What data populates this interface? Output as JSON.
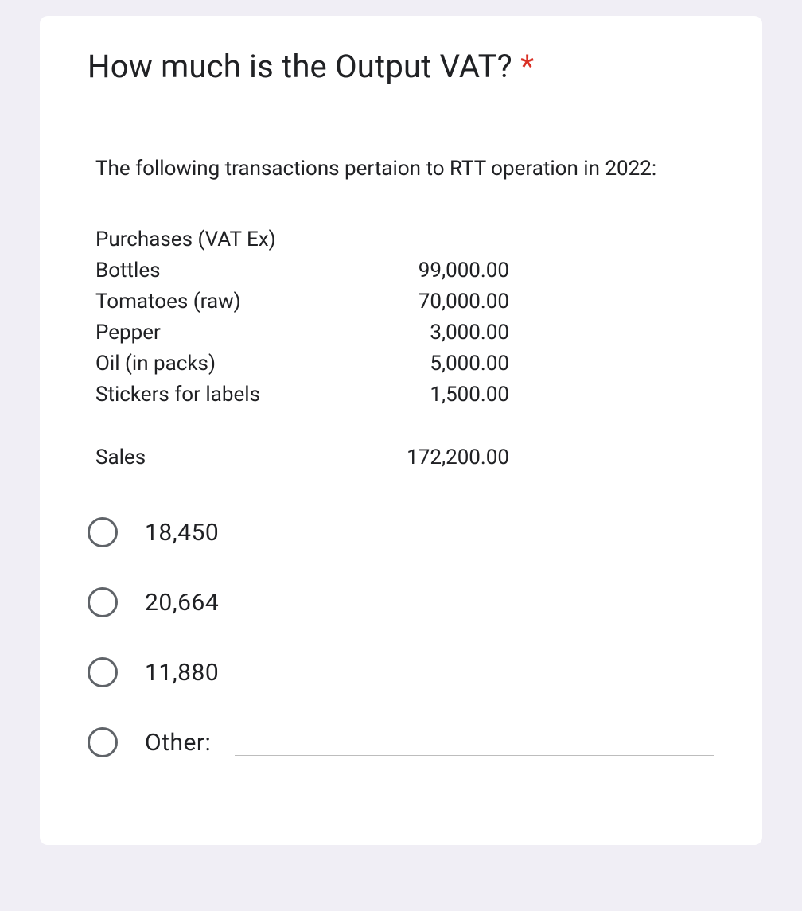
{
  "question": {
    "title": "How much is the Output VAT?",
    "required_marker": "*"
  },
  "intro": "The following transactions pertaion to RTT operation in 2022:",
  "table": {
    "section1_header": "Purchases (VAT Ex)",
    "rows1": [
      {
        "label": "Bottles",
        "value": "99,000.00"
      },
      {
        "label": "Tomatoes (raw)",
        "value": "70,000.00"
      },
      {
        "label": "Pepper",
        "value": "3,000.00"
      },
      {
        "label": "Oil (in packs)",
        "value": "5,000.00"
      },
      {
        "label": "Stickers for labels",
        "value": "1,500.00"
      }
    ],
    "rows2": [
      {
        "label": "Sales",
        "value": "172,200.00"
      }
    ]
  },
  "options": [
    "18,450",
    "20,664",
    "11,880"
  ],
  "other_label": "Other:",
  "colors": {
    "page_bg": "#f0eef5",
    "card_bg": "#ffffff",
    "text": "#202124",
    "required": "#d93025",
    "radio_border": "#5f6368",
    "underline": "#bdbdbd"
  }
}
